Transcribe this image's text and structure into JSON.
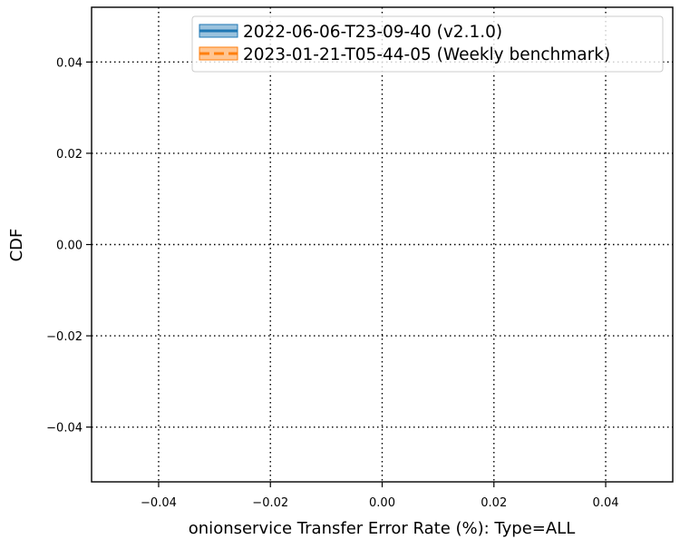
{
  "chart_data": {
    "type": "line",
    "title": "",
    "xlabel": "onionservice Transfer Error Rate (%): Type=ALL",
    "ylabel": "CDF",
    "xlim": [
      -0.052,
      0.052
    ],
    "ylim": [
      -0.052,
      0.052
    ],
    "x_ticks": [
      -0.04,
      -0.02,
      0.0,
      0.02,
      0.04
    ],
    "y_ticks": [
      -0.04,
      -0.02,
      0.0,
      0.02,
      0.04
    ],
    "x_tick_labels": [
      "−0.04",
      "−0.02",
      "0.00",
      "0.02",
      "0.04"
    ],
    "y_tick_labels": [
      "−0.04",
      "−0.02",
      "0.00",
      "0.02",
      "0.04"
    ],
    "grid": true,
    "grid_style": "dotted",
    "legend_position": "top-right",
    "series": [
      {
        "name": "2022-06-06-T23-09-40 (v2.1.0)",
        "color": "#1f77b4",
        "line_style": "solid",
        "x": [],
        "y": []
      },
      {
        "name": "2023-01-21-T05-44-05 (Weekly benchmark)",
        "color": "#ff7f0e",
        "line_style": "dashed",
        "x": [],
        "y": []
      }
    ]
  }
}
